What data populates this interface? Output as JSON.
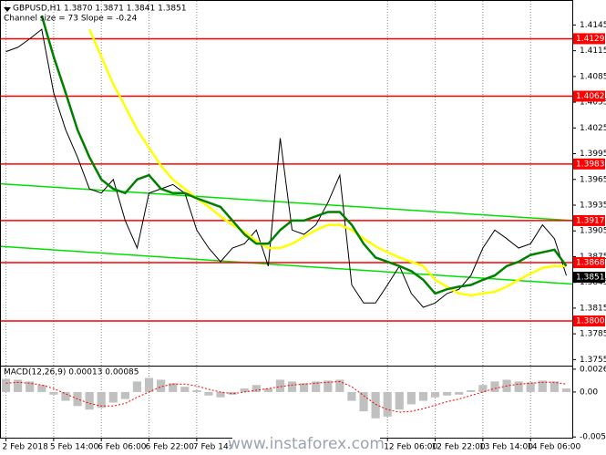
{
  "chart_data": [
    {
      "type": "line",
      "title": "GBPUSD,H1  1.3870 1.3871 1.3841 1.3851",
      "subtitle": "Channel size = 73 Slope = -0.24",
      "categories": [
        "2 Feb 2018",
        null,
        null,
        null,
        "5 Feb 14:00",
        null,
        null,
        null,
        "6 Feb 06:00",
        null,
        null,
        null,
        "6 Feb 22:00",
        null,
        null,
        null,
        "7 Feb 14:00",
        null,
        null,
        null,
        null,
        null,
        null,
        null,
        null,
        null,
        null,
        null,
        null,
        null,
        null,
        null,
        "12 Feb 06:00",
        null,
        null,
        null,
        "12 Feb 22:00",
        null,
        null,
        null,
        "13 Feb 14:00",
        null,
        null,
        null,
        "14 Feb 06:00",
        null,
        null,
        null
      ],
      "series": [
        {
          "color": "#000000",
          "values": [
            1.4114,
            1.4119,
            1.4129,
            1.414,
            1.4066,
            1.4023,
            1.3991,
            1.3954,
            1.3949,
            1.3965,
            1.3917,
            1.3885,
            1.3949,
            1.3954,
            1.3959,
            1.3949,
            1.3906,
            1.3885,
            1.3869,
            1.3885,
            1.389,
            1.3906,
            1.3864,
            1.4013,
            1.3906,
            1.3901,
            1.3912,
            1.3938,
            1.397,
            1.3842,
            1.3821,
            1.3821,
            1.3842,
            1.3864,
            1.3832,
            1.3816,
            1.3821,
            1.3832,
            1.3837,
            1.3853,
            1.3885,
            1.3906,
            1.3896,
            1.3885,
            1.389,
            1.3912,
            1.3896,
            1.3853
          ]
        },
        {
          "color": "#ffff00",
          "values": [
            null,
            null,
            null,
            null,
            null,
            null,
            null,
            1.414,
            1.4108,
            1.4076,
            1.405,
            1.4023,
            1.4002,
            1.3981,
            1.3965,
            1.3954,
            1.3943,
            1.3933,
            1.3922,
            1.3912,
            1.3904,
            1.3893,
            1.3885,
            1.3885,
            1.389,
            1.3898,
            1.3906,
            1.3912,
            1.3912,
            1.3906,
            1.3896,
            1.3887,
            1.388,
            1.3874,
            1.3869,
            1.3864,
            1.3848,
            1.384,
            1.3832,
            1.383,
            1.3832,
            1.3834,
            1.384,
            1.3848,
            1.3855,
            1.3862,
            1.3864,
            1.3864
          ]
        },
        {
          "color": "#008000",
          "values": [
            null,
            null,
            null,
            1.4156,
            1.4108,
            1.4066,
            1.4023,
            1.3991,
            1.3965,
            1.3954,
            1.3949,
            1.3965,
            1.397,
            1.3954,
            1.3949,
            1.3949,
            1.3943,
            1.3938,
            1.3933,
            1.3917,
            1.3901,
            1.389,
            1.389,
            1.3906,
            1.3917,
            1.3917,
            1.3922,
            1.3927,
            1.3927,
            1.3912,
            1.389,
            1.3874,
            1.3869,
            1.3864,
            1.3858,
            1.3848,
            1.3832,
            1.3837,
            1.384,
            1.3842,
            1.3848,
            1.3853,
            1.3864,
            1.3869,
            1.3877,
            1.388,
            1.3883,
            1.3864
          ]
        }
      ],
      "channel": [
        {
          "color": "#00e000",
          "values": [
            1.396,
            1.3917
          ]
        },
        {
          "color": "#00e000",
          "values": [
            1.3887,
            1.3843
          ]
        }
      ],
      "levels": [
        {
          "color": "#ff0000",
          "value": {
            "value": 1.4129,
            "label": "1.4129"
          }
        },
        {
          "color": "#ff0000",
          "value": {
            "value": 1.4062,
            "label": "1.4062"
          }
        },
        {
          "color": "#ff0000",
          "value": {
            "value": 1.3983,
            "label": "1.3983"
          }
        },
        {
          "color": "#ff0000",
          "value": {
            "value": 1.3917,
            "label": "1.3917"
          }
        },
        {
          "color": "#ff0000",
          "value": {
            "value": 1.3868,
            "label": "1.3868"
          }
        },
        {
          "color": "#ff0000",
          "value": {
            "value": 1.38,
            "label": "1.3800"
          }
        }
      ],
      "current_price": {
        "color": "#000000",
        "value": 1.3851
      },
      "ylim": [
        1.3749,
        1.4172
      ],
      "yticks": [
        1.4145,
        1.4115,
        1.4085,
        1.4055,
        1.4025,
        1.3995,
        1.3965,
        1.3935,
        1.3905,
        1.3875,
        1.3845,
        1.3815,
        1.3785,
        1.3755
      ],
      "grid": true
    },
    {
      "type": "macd",
      "title": "MACD(12,26,9) 0.00013 0.00085",
      "color": "#c0c0c0",
      "values": [
        0.0015,
        0.0014,
        0.0012,
        0.0008,
        -0.0003,
        -0.001,
        -0.0016,
        -0.002,
        -0.0018,
        -0.0012,
        -0.0008,
        0.0012,
        0.0016,
        0.0014,
        0.001,
        0.0006,
        0.0002,
        -0.0004,
        -0.0006,
        -0.0003,
        0.0004,
        0.0008,
        0.0004,
        0.0014,
        0.0012,
        0.001,
        0.0012,
        0.0013,
        0.0014,
        -0.001,
        -0.0022,
        -0.003,
        -0.0028,
        -0.002,
        -0.0014,
        -0.001,
        -0.0006,
        -0.0004,
        -0.0003,
        0.0002,
        0.0008,
        0.0012,
        0.0014,
        0.0012,
        0.0011,
        0.0013,
        0.0012,
        0.0004
      ],
      "signal": {
        "color": "#ff0000",
        "values": [
          0.001,
          0.0011,
          0.001,
          0.0008,
          0.0004,
          -0.0002,
          -0.0008,
          -0.0013,
          -0.0016,
          -0.0016,
          -0.0013,
          -0.0006,
          0.0,
          0.0006,
          0.0009,
          0.0009,
          0.0007,
          0.0003,
          0.0,
          -0.0002,
          0.0,
          0.0002,
          0.0004,
          0.0006,
          0.0008,
          0.0009,
          0.001,
          0.0011,
          0.0012,
          0.0006,
          -0.0004,
          -0.0014,
          -0.002,
          -0.0023,
          -0.0022,
          -0.0019,
          -0.0015,
          -0.0011,
          -0.0008,
          -0.0004,
          0.0,
          0.0004,
          0.0007,
          0.0009,
          0.001,
          0.0011,
          0.0011,
          0.0009
        ]
      },
      "ylim": [
        -0.0052,
        0.0029
      ],
      "yticks": [
        0.0026,
        {
          "value": 0,
          "label": "0.00"
        },
        -0.00512
      ]
    }
  ],
  "watermark": "www.instaforex.com"
}
